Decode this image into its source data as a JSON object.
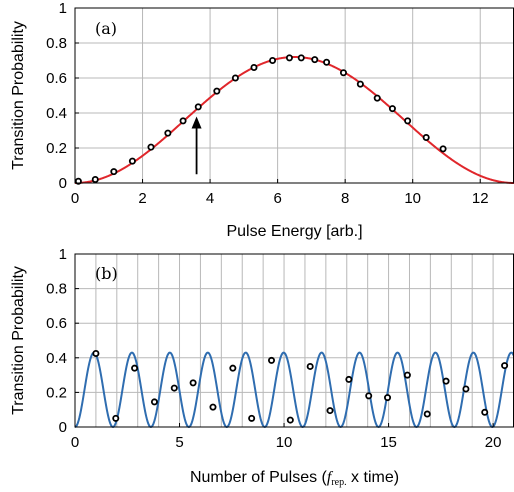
{
  "chart_data": [
    {
      "type": "line",
      "panel_label": "(a)",
      "xlabel": "Pulse Energy [arb.]",
      "ylabel": "Transition Probability",
      "xlim": [
        0,
        13
      ],
      "ylim": [
        0,
        1
      ],
      "xticks": [
        0,
        2,
        4,
        6,
        8,
        10,
        12
      ],
      "yticks": [
        0,
        0.2,
        0.4,
        0.6,
        0.8,
        1
      ],
      "ytick_labels": [
        "0",
        "0.2",
        "0.4",
        "0.6",
        "0.8",
        "1"
      ],
      "grid": true,
      "fit_color": "#e0262b",
      "fit": {
        "amplitude": 0.72,
        "peak_x": 6.5
      },
      "points": {
        "x": [
          0.1,
          0.6,
          1.15,
          1.7,
          2.25,
          2.75,
          3.2,
          3.65,
          4.2,
          4.75,
          5.3,
          5.85,
          6.35,
          6.7,
          7.1,
          7.45,
          7.95,
          8.45,
          8.95,
          9.4,
          9.85,
          10.4,
          10.9
        ],
        "y": [
          0.01,
          0.02,
          0.065,
          0.125,
          0.205,
          0.285,
          0.355,
          0.435,
          0.525,
          0.6,
          0.66,
          0.7,
          0.715,
          0.715,
          0.705,
          0.69,
          0.63,
          0.565,
          0.485,
          0.425,
          0.355,
          0.26,
          0.195
        ]
      },
      "annotation": {
        "type": "arrow",
        "x": 3.6,
        "y_from": 0.05,
        "y_to": 0.38
      }
    },
    {
      "type": "line",
      "panel_label": "(b)",
      "xlabel_main": "Number of Pulses (",
      "xlabel_italic": "f",
      "xlabel_sub": "rep.",
      "xlabel_end": " x time)",
      "ylabel": "Transition Probability",
      "xlim": [
        0,
        21
      ],
      "ylim": [
        0,
        1
      ],
      "xticks": [
        0,
        5,
        10,
        15,
        20
      ],
      "yticks": [
        0,
        0.2,
        0.4,
        0.6,
        0.8,
        1
      ],
      "ytick_labels": [
        "0",
        "0.2",
        "0.4",
        "0.6",
        "0.8",
        "1"
      ],
      "grid": true,
      "minor_vgrid_step": 1,
      "fit_color": "#2f6db0",
      "fit": {
        "amplitude": 0.43,
        "period": 1.815
      },
      "points": {
        "x": [
          1.0,
          1.95,
          2.85,
          3.8,
          4.75,
          5.65,
          6.6,
          7.55,
          8.45,
          9.4,
          10.3,
          11.25,
          12.2,
          13.1,
          14.05,
          14.95,
          15.9,
          16.85,
          17.75,
          18.7,
          19.6,
          20.55
        ],
        "y": [
          0.425,
          0.05,
          0.34,
          0.145,
          0.225,
          0.255,
          0.115,
          0.34,
          0.05,
          0.385,
          0.04,
          0.35,
          0.095,
          0.275,
          0.18,
          0.17,
          0.3,
          0.075,
          0.265,
          0.22,
          0.085,
          0.355
        ]
      }
    }
  ]
}
